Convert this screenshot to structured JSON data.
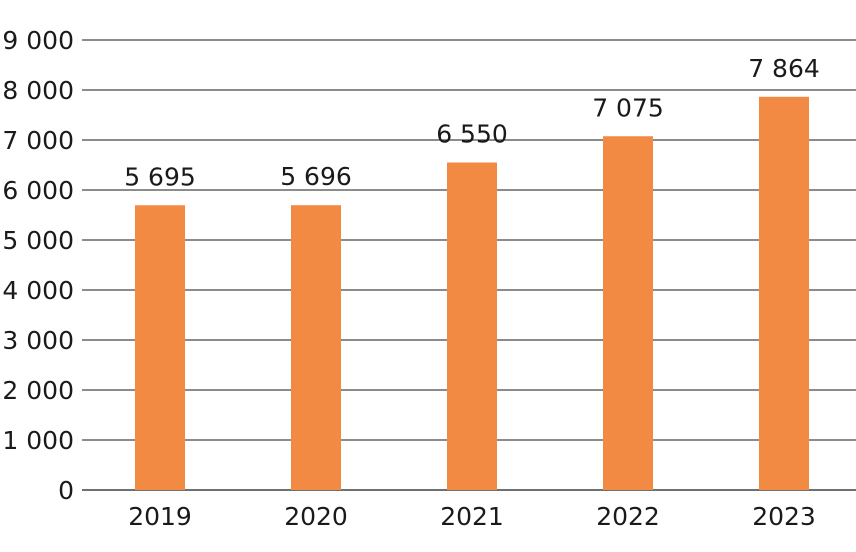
{
  "chart_data": {
    "type": "bar",
    "title": "",
    "xlabel": "",
    "ylabel": "",
    "categories": [
      "2019",
      "2020",
      "2021",
      "2022",
      "2023"
    ],
    "values": [
      5695,
      5696,
      6550,
      7075,
      7864
    ],
    "value_labels": [
      "5 695",
      "5 696",
      "6 550",
      "7 075",
      "7 864"
    ],
    "ylim": [
      0,
      9000
    ],
    "yticks": [
      0,
      1000,
      2000,
      3000,
      4000,
      5000,
      6000,
      7000,
      8000,
      9000
    ],
    "ytick_labels": [
      "0",
      "1 000",
      "2 000",
      "3 000",
      "4 000",
      "5 000",
      "6 000",
      "7 000",
      "8 000",
      "9 000"
    ],
    "grid": true,
    "bar_color": "#f28a44"
  }
}
